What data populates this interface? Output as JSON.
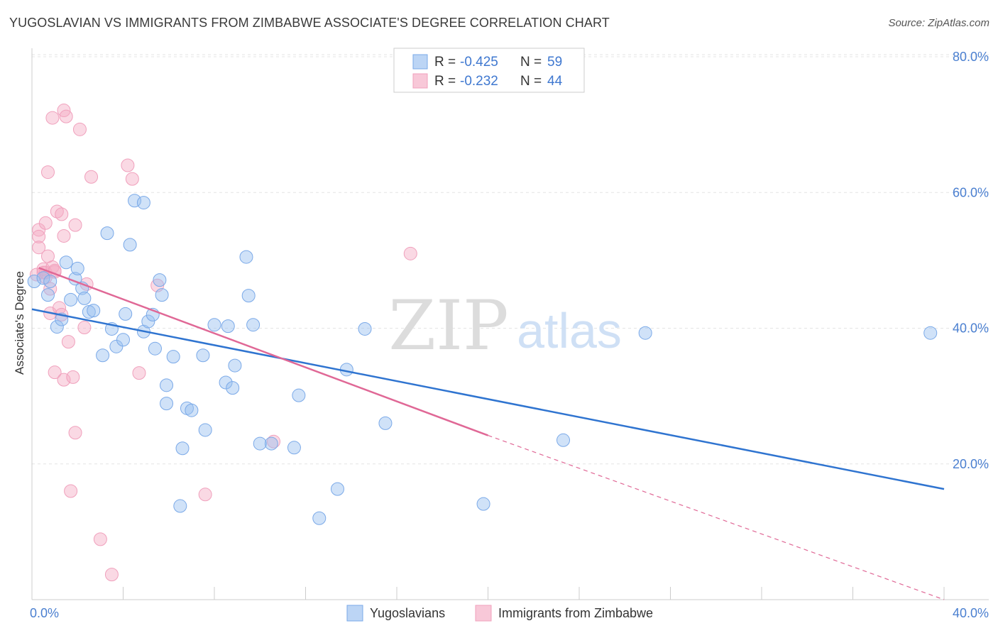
{
  "title": "YUGOSLAVIAN VS IMMIGRANTS FROM ZIMBABWE ASSOCIATE'S DEGREE CORRELATION CHART",
  "source": "Source: ZipAtlas.com",
  "watermark": {
    "zip": "ZIP",
    "atlas": "atlas"
  },
  "legend_top": [
    {
      "r_label": "R = ",
      "r_value": "-0.425",
      "n_label": "N = ",
      "n_value": "59"
    },
    {
      "r_label": "R = ",
      "r_value": "-0.232",
      "n_label": "N = ",
      "n_value": "44"
    }
  ],
  "chart_data": {
    "type": "scatter",
    "title": "YUGOSLAVIAN VS IMMIGRANTS FROM ZIMBABWE ASSOCIATE'S DEGREE CORRELATION CHART",
    "xlabel": "",
    "ylabel": "Associate's Degree",
    "xlim": [
      0,
      40
    ],
    "ylim": [
      0,
      80
    ],
    "x_ticks": [
      "0.0%",
      "40.0%"
    ],
    "y_ticks": [
      "20.0%",
      "40.0%",
      "60.0%",
      "80.0%"
    ],
    "y_tick_values": [
      20,
      40,
      60,
      80
    ],
    "grid": true,
    "legend_position": "top-center",
    "colors": {
      "yugoslavians": "#7aa9e8",
      "zimbabwe": "#f0a0bc",
      "line_blue": "#2f74d0",
      "line_pink": "#e06896"
    },
    "series": [
      {
        "name": "Yugoslavians",
        "points": [
          [
            0.1,
            46.9
          ],
          [
            0.5,
            47.4
          ],
          [
            0.7,
            44.9
          ],
          [
            0.8,
            46.9
          ],
          [
            1.1,
            40.2
          ],
          [
            1.3,
            41.3
          ],
          [
            1.5,
            49.7
          ],
          [
            1.7,
            44.2
          ],
          [
            1.9,
            47.3
          ],
          [
            2.0,
            48.8
          ],
          [
            2.2,
            45.9
          ],
          [
            2.3,
            44.4
          ],
          [
            2.5,
            42.4
          ],
          [
            2.7,
            42.6
          ],
          [
            3.1,
            36.0
          ],
          [
            3.3,
            54.0
          ],
          [
            3.5,
            39.9
          ],
          [
            3.7,
            37.3
          ],
          [
            4.0,
            38.3
          ],
          [
            4.1,
            42.1
          ],
          [
            4.3,
            52.3
          ],
          [
            4.5,
            58.8
          ],
          [
            4.9,
            39.5
          ],
          [
            4.9,
            58.5
          ],
          [
            5.1,
            41.0
          ],
          [
            5.3,
            42.0
          ],
          [
            5.4,
            37.0
          ],
          [
            5.6,
            47.1
          ],
          [
            5.7,
            44.9
          ],
          [
            5.9,
            31.6
          ],
          [
            5.9,
            28.9
          ],
          [
            6.2,
            35.8
          ],
          [
            6.6,
            22.3
          ],
          [
            6.8,
            28.2
          ],
          [
            7.0,
            27.9
          ],
          [
            7.5,
            36.0
          ],
          [
            7.6,
            25.0
          ],
          [
            8.0,
            40.5
          ],
          [
            8.5,
            32.0
          ],
          [
            8.6,
            40.3
          ],
          [
            8.8,
            31.2
          ],
          [
            8.9,
            34.5
          ],
          [
            9.4,
            50.5
          ],
          [
            9.5,
            44.8
          ],
          [
            9.7,
            40.5
          ],
          [
            10.5,
            23.0
          ],
          [
            11.5,
            22.4
          ],
          [
            11.7,
            30.1
          ],
          [
            12.6,
            12.0
          ],
          [
            13.4,
            16.3
          ],
          [
            13.8,
            33.9
          ],
          [
            14.6,
            39.9
          ],
          [
            15.5,
            26.0
          ],
          [
            19.8,
            14.1
          ],
          [
            23.3,
            23.5
          ],
          [
            26.9,
            39.3
          ],
          [
            39.4,
            39.3
          ],
          [
            6.5,
            13.8
          ],
          [
            10.0,
            23.0
          ]
        ]
      },
      {
        "name": "Immigrants from Zimbabwe",
        "points": [
          [
            0.2,
            47.9
          ],
          [
            0.3,
            54.5
          ],
          [
            0.3,
            53.5
          ],
          [
            0.3,
            51.9
          ],
          [
            0.5,
            48.2
          ],
          [
            0.5,
            48.7
          ],
          [
            0.6,
            47.5
          ],
          [
            0.6,
            48.2
          ],
          [
            0.6,
            55.5
          ],
          [
            0.7,
            63.0
          ],
          [
            0.7,
            50.6
          ],
          [
            0.8,
            42.2
          ],
          [
            0.8,
            45.8
          ],
          [
            0.9,
            71.0
          ],
          [
            0.9,
            49.0
          ],
          [
            1.0,
            48.3
          ],
          [
            1.0,
            48.5
          ],
          [
            1.0,
            33.5
          ],
          [
            1.1,
            57.2
          ],
          [
            1.2,
            43.0
          ],
          [
            1.3,
            42.0
          ],
          [
            1.3,
            56.8
          ],
          [
            1.4,
            32.4
          ],
          [
            1.4,
            53.6
          ],
          [
            1.4,
            72.1
          ],
          [
            1.5,
            71.2
          ],
          [
            1.6,
            38.0
          ],
          [
            1.7,
            16.0
          ],
          [
            1.8,
            32.8
          ],
          [
            1.9,
            55.2
          ],
          [
            1.9,
            24.6
          ],
          [
            2.1,
            69.3
          ],
          [
            2.3,
            40.1
          ],
          [
            2.4,
            46.5
          ],
          [
            2.6,
            62.3
          ],
          [
            3.0,
            8.9
          ],
          [
            3.5,
            3.7
          ],
          [
            4.2,
            64.0
          ],
          [
            4.4,
            62.0
          ],
          [
            4.7,
            33.4
          ],
          [
            5.5,
            46.3
          ],
          [
            7.6,
            15.5
          ],
          [
            10.6,
            23.3
          ],
          [
            16.6,
            51.0
          ]
        ]
      }
    ],
    "trend_lines": [
      {
        "series": "Yugoslavians",
        "x": [
          0,
          40
        ],
        "y": [
          42.8,
          16.3
        ]
      },
      {
        "series": "Immigrants from Zimbabwe",
        "x": [
          0.3,
          20.0
        ],
        "y": [
          48.9,
          24.2
        ],
        "dashed_extension": {
          "x": [
            20.0,
            40.0
          ],
          "y": [
            24.2,
            0.0
          ]
        }
      }
    ]
  },
  "bottom_legend": [
    {
      "label": "Yugoslavians"
    },
    {
      "label": "Immigrants from Zimbabwe"
    }
  ]
}
